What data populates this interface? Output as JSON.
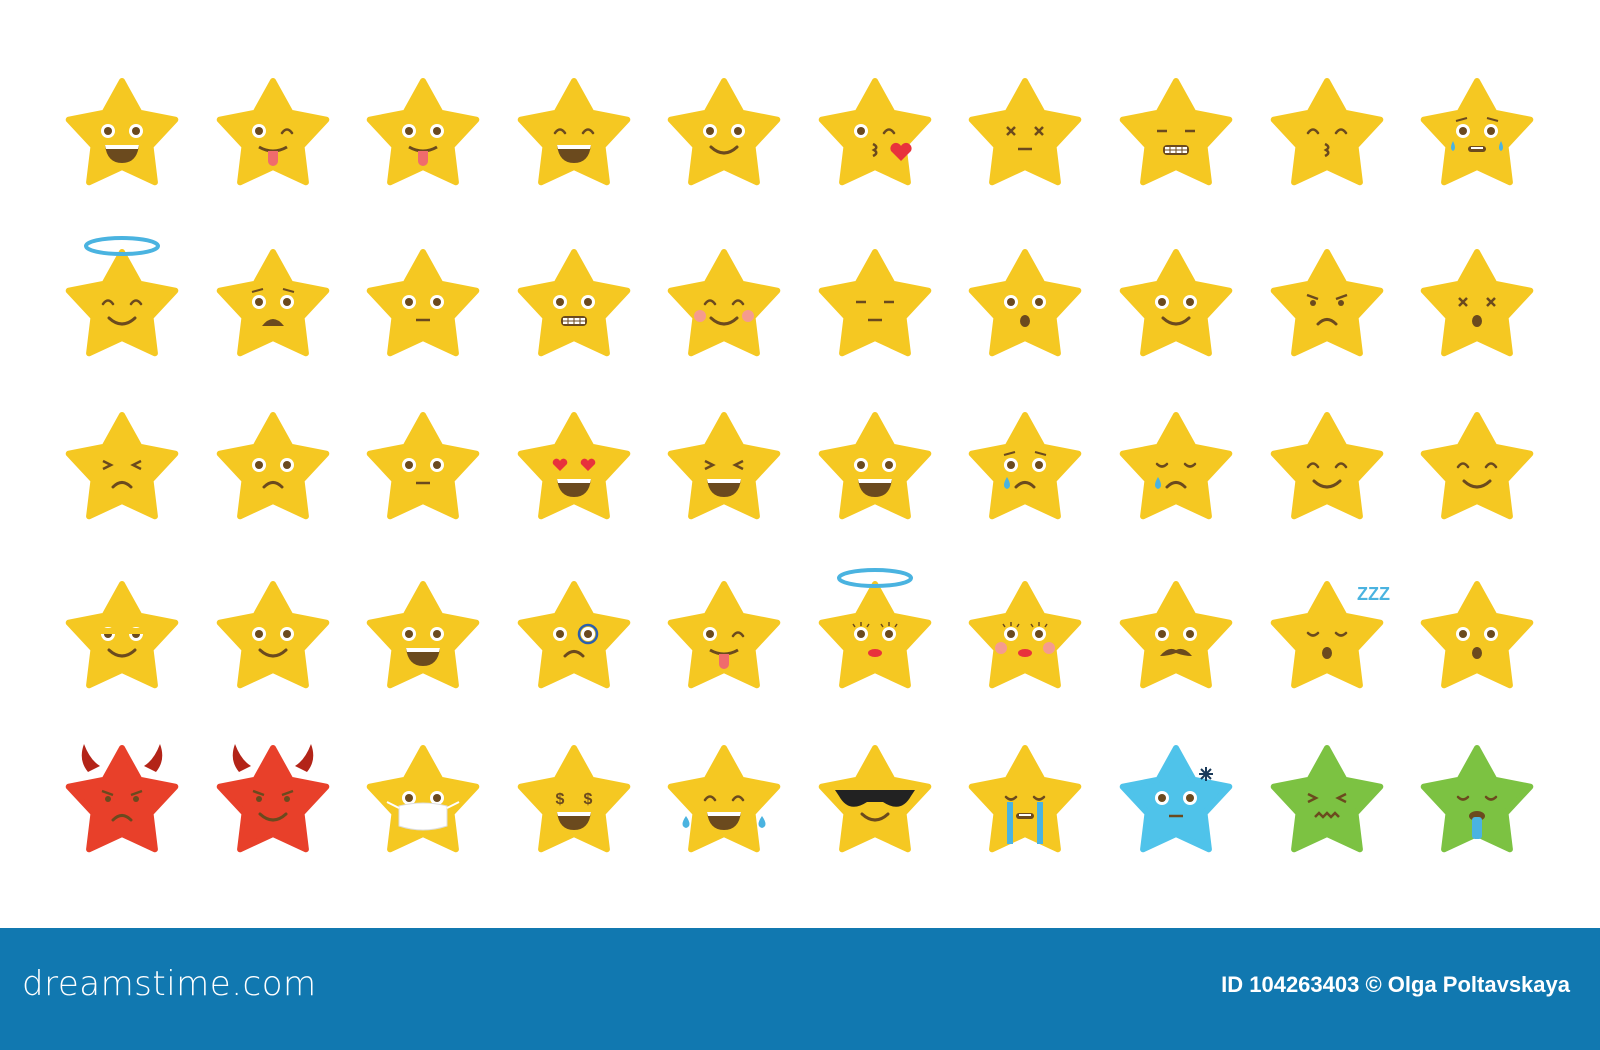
{
  "colors": {
    "yellow": "#f5c822",
    "red": "#e8402a",
    "blue": "#4fc3ea",
    "green": "#7cc242",
    "feature": "#6b4a1e",
    "footer": "#1178b0",
    "halo": "#4ab3e0",
    "tongue": "#f06c6c",
    "heart": "#e8323c"
  },
  "footer": {
    "logo": "dreamstime.com",
    "credit": "ID 104263403 © Olga Poltavskaya"
  },
  "stars": [
    {
      "name": "grinning",
      "color": "yellow",
      "eyes": "open",
      "mouth": "grin"
    },
    {
      "name": "winking-tongue",
      "color": "yellow",
      "eyes": "wink",
      "mouth": "tongue"
    },
    {
      "name": "tongue-out",
      "color": "yellow",
      "eyes": "open",
      "mouth": "tongue"
    },
    {
      "name": "happy-squint",
      "color": "yellow",
      "eyes": "happy",
      "mouth": "grin"
    },
    {
      "name": "smiling",
      "color": "yellow",
      "eyes": "open",
      "mouth": "smile"
    },
    {
      "name": "kissing-heart",
      "color": "yellow",
      "eyes": "wink",
      "mouth": "kiss",
      "extra": "heart"
    },
    {
      "name": "dizzy",
      "color": "yellow",
      "eyes": "x",
      "mouth": "flat"
    },
    {
      "name": "grimacing",
      "color": "yellow",
      "eyes": "line",
      "mouth": "teeth"
    },
    {
      "name": "kissing",
      "color": "yellow",
      "eyes": "happy",
      "mouth": "kiss"
    },
    {
      "name": "crying",
      "color": "yellow",
      "eyes": "sad",
      "mouth": "openflat",
      "extra": "tears"
    },
    {
      "name": "angel",
      "color": "yellow",
      "eyes": "happy",
      "mouth": "smile",
      "extra": "halo"
    },
    {
      "name": "worried",
      "color": "yellow",
      "eyes": "sad",
      "mouth": "sadopen"
    },
    {
      "name": "neutral",
      "color": "yellow",
      "eyes": "open",
      "mouth": "flat"
    },
    {
      "name": "grimacing-open",
      "color": "yellow",
      "eyes": "open",
      "mouth": "teeth"
    },
    {
      "name": "blushing",
      "color": "yellow",
      "eyes": "happy",
      "mouth": "smile",
      "extra": "blush"
    },
    {
      "name": "expressionless",
      "color": "yellow",
      "eyes": "line",
      "mouth": "flat"
    },
    {
      "name": "surprised",
      "color": "yellow",
      "eyes": "open",
      "mouth": "o"
    },
    {
      "name": "slight-smile",
      "color": "yellow",
      "eyes": "open",
      "mouth": "smile"
    },
    {
      "name": "angry",
      "color": "yellow",
      "eyes": "angry",
      "mouth": "sad"
    },
    {
      "name": "dizzy-open",
      "color": "yellow",
      "eyes": "x",
      "mouth": "o"
    },
    {
      "name": "confounded",
      "color": "yellow",
      "eyes": "squint",
      "mouth": "sad"
    },
    {
      "name": "frowning",
      "color": "yellow",
      "eyes": "open",
      "mouth": "sad"
    },
    {
      "name": "neutral-2",
      "color": "yellow",
      "eyes": "open",
      "mouth": "flat"
    },
    {
      "name": "heart-eyes",
      "color": "yellow",
      "eyes": "heart",
      "mouth": "grin"
    },
    {
      "name": "laughing",
      "color": "yellow",
      "eyes": "squint",
      "mouth": "grin"
    },
    {
      "name": "big-grin",
      "color": "yellow",
      "eyes": "open",
      "mouth": "grin"
    },
    {
      "name": "sad-tear",
      "color": "yellow",
      "eyes": "sad",
      "mouth": "sad",
      "extra": "tear"
    },
    {
      "name": "disappointed-tear",
      "color": "yellow",
      "eyes": "closedsad",
      "mouth": "sad",
      "extra": "tear"
    },
    {
      "name": "content",
      "color": "yellow",
      "eyes": "happy",
      "mouth": "smile"
    },
    {
      "name": "relieved",
      "color": "yellow",
      "eyes": "happy",
      "mouth": "smile"
    },
    {
      "name": "smirk",
      "color": "yellow",
      "eyes": "half",
      "mouth": "smile"
    },
    {
      "name": "smile-2",
      "color": "yellow",
      "eyes": "open",
      "mouth": "smile"
    },
    {
      "name": "grin-2",
      "color": "yellow",
      "eyes": "open",
      "mouth": "grin"
    },
    {
      "name": "monocle",
      "color": "yellow",
      "eyes": "open",
      "mouth": "sad",
      "extra": "monocle"
    },
    {
      "name": "yum",
      "color": "yellow",
      "eyes": "wink",
      "mouth": "tongue"
    },
    {
      "name": "angel-lady",
      "color": "yellow",
      "eyes": "lash",
      "mouth": "lips",
      "extra": "halo"
    },
    {
      "name": "lady-blush",
      "color": "yellow",
      "eyes": "lash",
      "mouth": "lips",
      "extra": "blush"
    },
    {
      "name": "mustache",
      "color": "yellow",
      "eyes": "open",
      "mouth": "mustache"
    },
    {
      "name": "sleeping",
      "color": "yellow",
      "eyes": "closedsad",
      "mouth": "o",
      "extra": "zzz"
    },
    {
      "name": "hushed",
      "color": "yellow",
      "eyes": "open",
      "mouth": "o"
    },
    {
      "name": "devil-angry",
      "color": "red",
      "eyes": "angry",
      "mouth": "sad",
      "extra": "horns"
    },
    {
      "name": "devil-smile",
      "color": "red",
      "eyes": "angry",
      "mouth": "smile",
      "extra": "horns"
    },
    {
      "name": "medical-mask",
      "color": "yellow",
      "eyes": "open",
      "mouth": "none",
      "extra": "mask"
    },
    {
      "name": "money-eyes",
      "color": "yellow",
      "eyes": "dollar",
      "mouth": "grin"
    },
    {
      "name": "tears-of-joy",
      "color": "yellow",
      "eyes": "happy",
      "mouth": "grin",
      "extra": "joytears"
    },
    {
      "name": "sunglasses",
      "color": "yellow",
      "eyes": "none",
      "mouth": "smile",
      "extra": "glasses"
    },
    {
      "name": "loudly-crying",
      "color": "yellow",
      "eyes": "closedsad",
      "mouth": "openflat",
      "extra": "streams"
    },
    {
      "name": "freezing",
      "color": "blue",
      "eyes": "open",
      "mouth": "flat",
      "extra": "snowflake"
    },
    {
      "name": "nauseated",
      "color": "green",
      "eyes": "squint",
      "mouth": "wavy"
    },
    {
      "name": "vomiting",
      "color": "green",
      "eyes": "closedsad",
      "mouth": "vomit"
    }
  ]
}
